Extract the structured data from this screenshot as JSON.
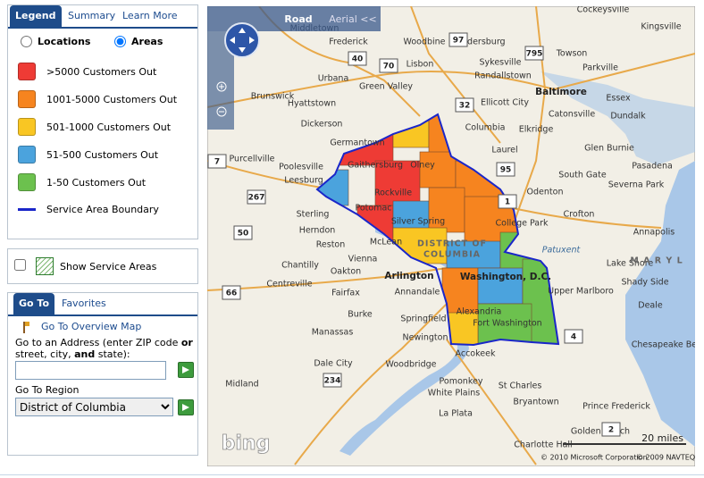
{
  "legend_panel": {
    "tabs": [
      "Legend",
      "Summary",
      "Learn More"
    ],
    "view_options": [
      "Locations",
      "Areas"
    ],
    "items": [
      {
        "label": ">5000 Customers Out",
        "color": "#ee3b35"
      },
      {
        "label": "1001-5000 Customers Out",
        "color": "#f6841f"
      },
      {
        "label": "501-1000 Customers Out",
        "color": "#f9c623"
      },
      {
        "label": "51-500 Customers Out",
        "color": "#4ba3dd"
      },
      {
        "label": "1-50 Customers Out",
        "color": "#6cc14e"
      }
    ],
    "boundary_label": "Service Area Boundary",
    "boundary_color": "#1a26c9"
  },
  "service_areas": {
    "label": "Show Service Areas"
  },
  "goto_panel": {
    "tabs": [
      "Go To",
      "Favorites"
    ],
    "overview_link": "Go To Overview Map",
    "address_label": [
      "Go to an Address (enter ZIP code ",
      "or",
      " street, city, ",
      "and",
      " state):"
    ],
    "region_label": "Go To Region",
    "region_value": "District of Columbia"
  },
  "map": {
    "view_buttons": [
      "Road",
      "Aerial <<"
    ],
    "labels": [
      "Cockeysville",
      "Kingsville",
      "Middletown",
      "Frederick",
      "Woodbine",
      "Eldersburg",
      "Towson",
      "Sykesville",
      "Parkville",
      "Randallstown",
      "Baltimore",
      "Essex",
      "Ellicott City",
      "Catonsville",
      "Dundalk",
      "Columbia",
      "Elkridge",
      "Glen Burnie",
      "Germantown",
      "Pasadena",
      "Purcellville",
      "Laurel",
      "Gaithersburg",
      "Olney",
      "Leesburg",
      "South Gate",
      "Severna Park",
      "Odenton",
      "Rockville",
      "Potomac",
      "Crofton",
      "Sterling",
      "Silver Spring",
      "College Park",
      "Herndon",
      "Annapolis",
      "Reston",
      "McLean",
      "Vienna",
      "Chantilly",
      "Oakton",
      "Arlington",
      "Washington, D.C.",
      "Centreville",
      "Fairfax",
      "Annandale",
      "Upper Marlboro",
      "Shady Side",
      "Deale",
      "Alexandria",
      "Burke",
      "Springfield",
      "Fort Washington",
      "Manassas",
      "Newington",
      "Accokeek",
      "Dale City",
      "Woodbridge",
      "Midland",
      "Pomonkey",
      "St Charles",
      "White Plains",
      "Bryantown",
      "Prince Frederick",
      "La Plata",
      "Golden Beach",
      "Charlotte Hall",
      "Brunswick",
      "Green Valley",
      "Urbana",
      "Hyattstown",
      "Dickerson",
      "Poolesville",
      "Lisbon",
      "Lake Shore",
      "Chesapeake Beach"
    ],
    "region_labels": [
      "DISTRICT OF",
      "COLUMBIA",
      "M A R Y L",
      "Patuxent"
    ],
    "road_numbers": [
      "97",
      "40",
      "70",
      "795",
      "32",
      "7",
      "267",
      "50",
      "66",
      "234",
      "95",
      "4",
      "2",
      "1"
    ],
    "logo": "bing",
    "scale": "20 miles",
    "copyright": [
      "© 2010 Microsoft Corporation",
      "© 2009 NAVTEQ"
    ]
  }
}
